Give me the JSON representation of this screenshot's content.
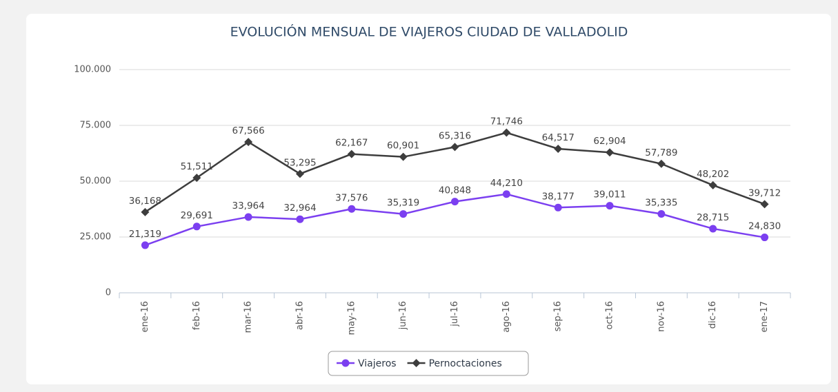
{
  "chart_data": {
    "type": "line",
    "title": "EVOLUCIÓN MENSUAL DE VIAJEROS CIUDAD DE VALLADOLID",
    "categories": [
      "ene-16",
      "feb-16",
      "mar-16",
      "abr-16",
      "may-16",
      "jun-16",
      "jul-16",
      "ago-16",
      "sep-16",
      "oct-16",
      "nov-16",
      "dic-16",
      "ene-17"
    ],
    "series": [
      {
        "name": "Viajeros",
        "color": "#7b3ff0",
        "marker": "circle",
        "values": [
          21319,
          29691,
          33964,
          32964,
          37576,
          35319,
          40848,
          44210,
          38177,
          39011,
          35335,
          28715,
          24830
        ],
        "value_labels": [
          "21,319",
          "29,691",
          "33,964",
          "32,964",
          "37,576",
          "35,319",
          "40,848",
          "44,210",
          "38,177",
          "39,011",
          "35,335",
          "28,715",
          "24,830"
        ]
      },
      {
        "name": "Pernoctaciones",
        "color": "#3d3d3d",
        "marker": "diamond",
        "values": [
          36168,
          51511,
          67566,
          53295,
          62167,
          60901,
          65316,
          71746,
          64517,
          62904,
          57789,
          48202,
          39712
        ],
        "value_labels": [
          "36,168",
          "51,511",
          "67,566",
          "53,295",
          "62,167",
          "60,901",
          "65,316",
          "71,746",
          "64,517",
          "62,904",
          "57,789",
          "48,202",
          "39,712"
        ]
      }
    ],
    "ylim": [
      0,
      100000
    ],
    "yticks": [
      0,
      {
        "value": 25000,
        "label": "25.000"
      },
      {
        "value": 50000,
        "label": "50.000"
      },
      {
        "value": 75000,
        "label": "75.000"
      },
      {
        "value": 100000,
        "label": "100.000"
      }
    ],
    "grid": true,
    "legend": "bottom"
  }
}
